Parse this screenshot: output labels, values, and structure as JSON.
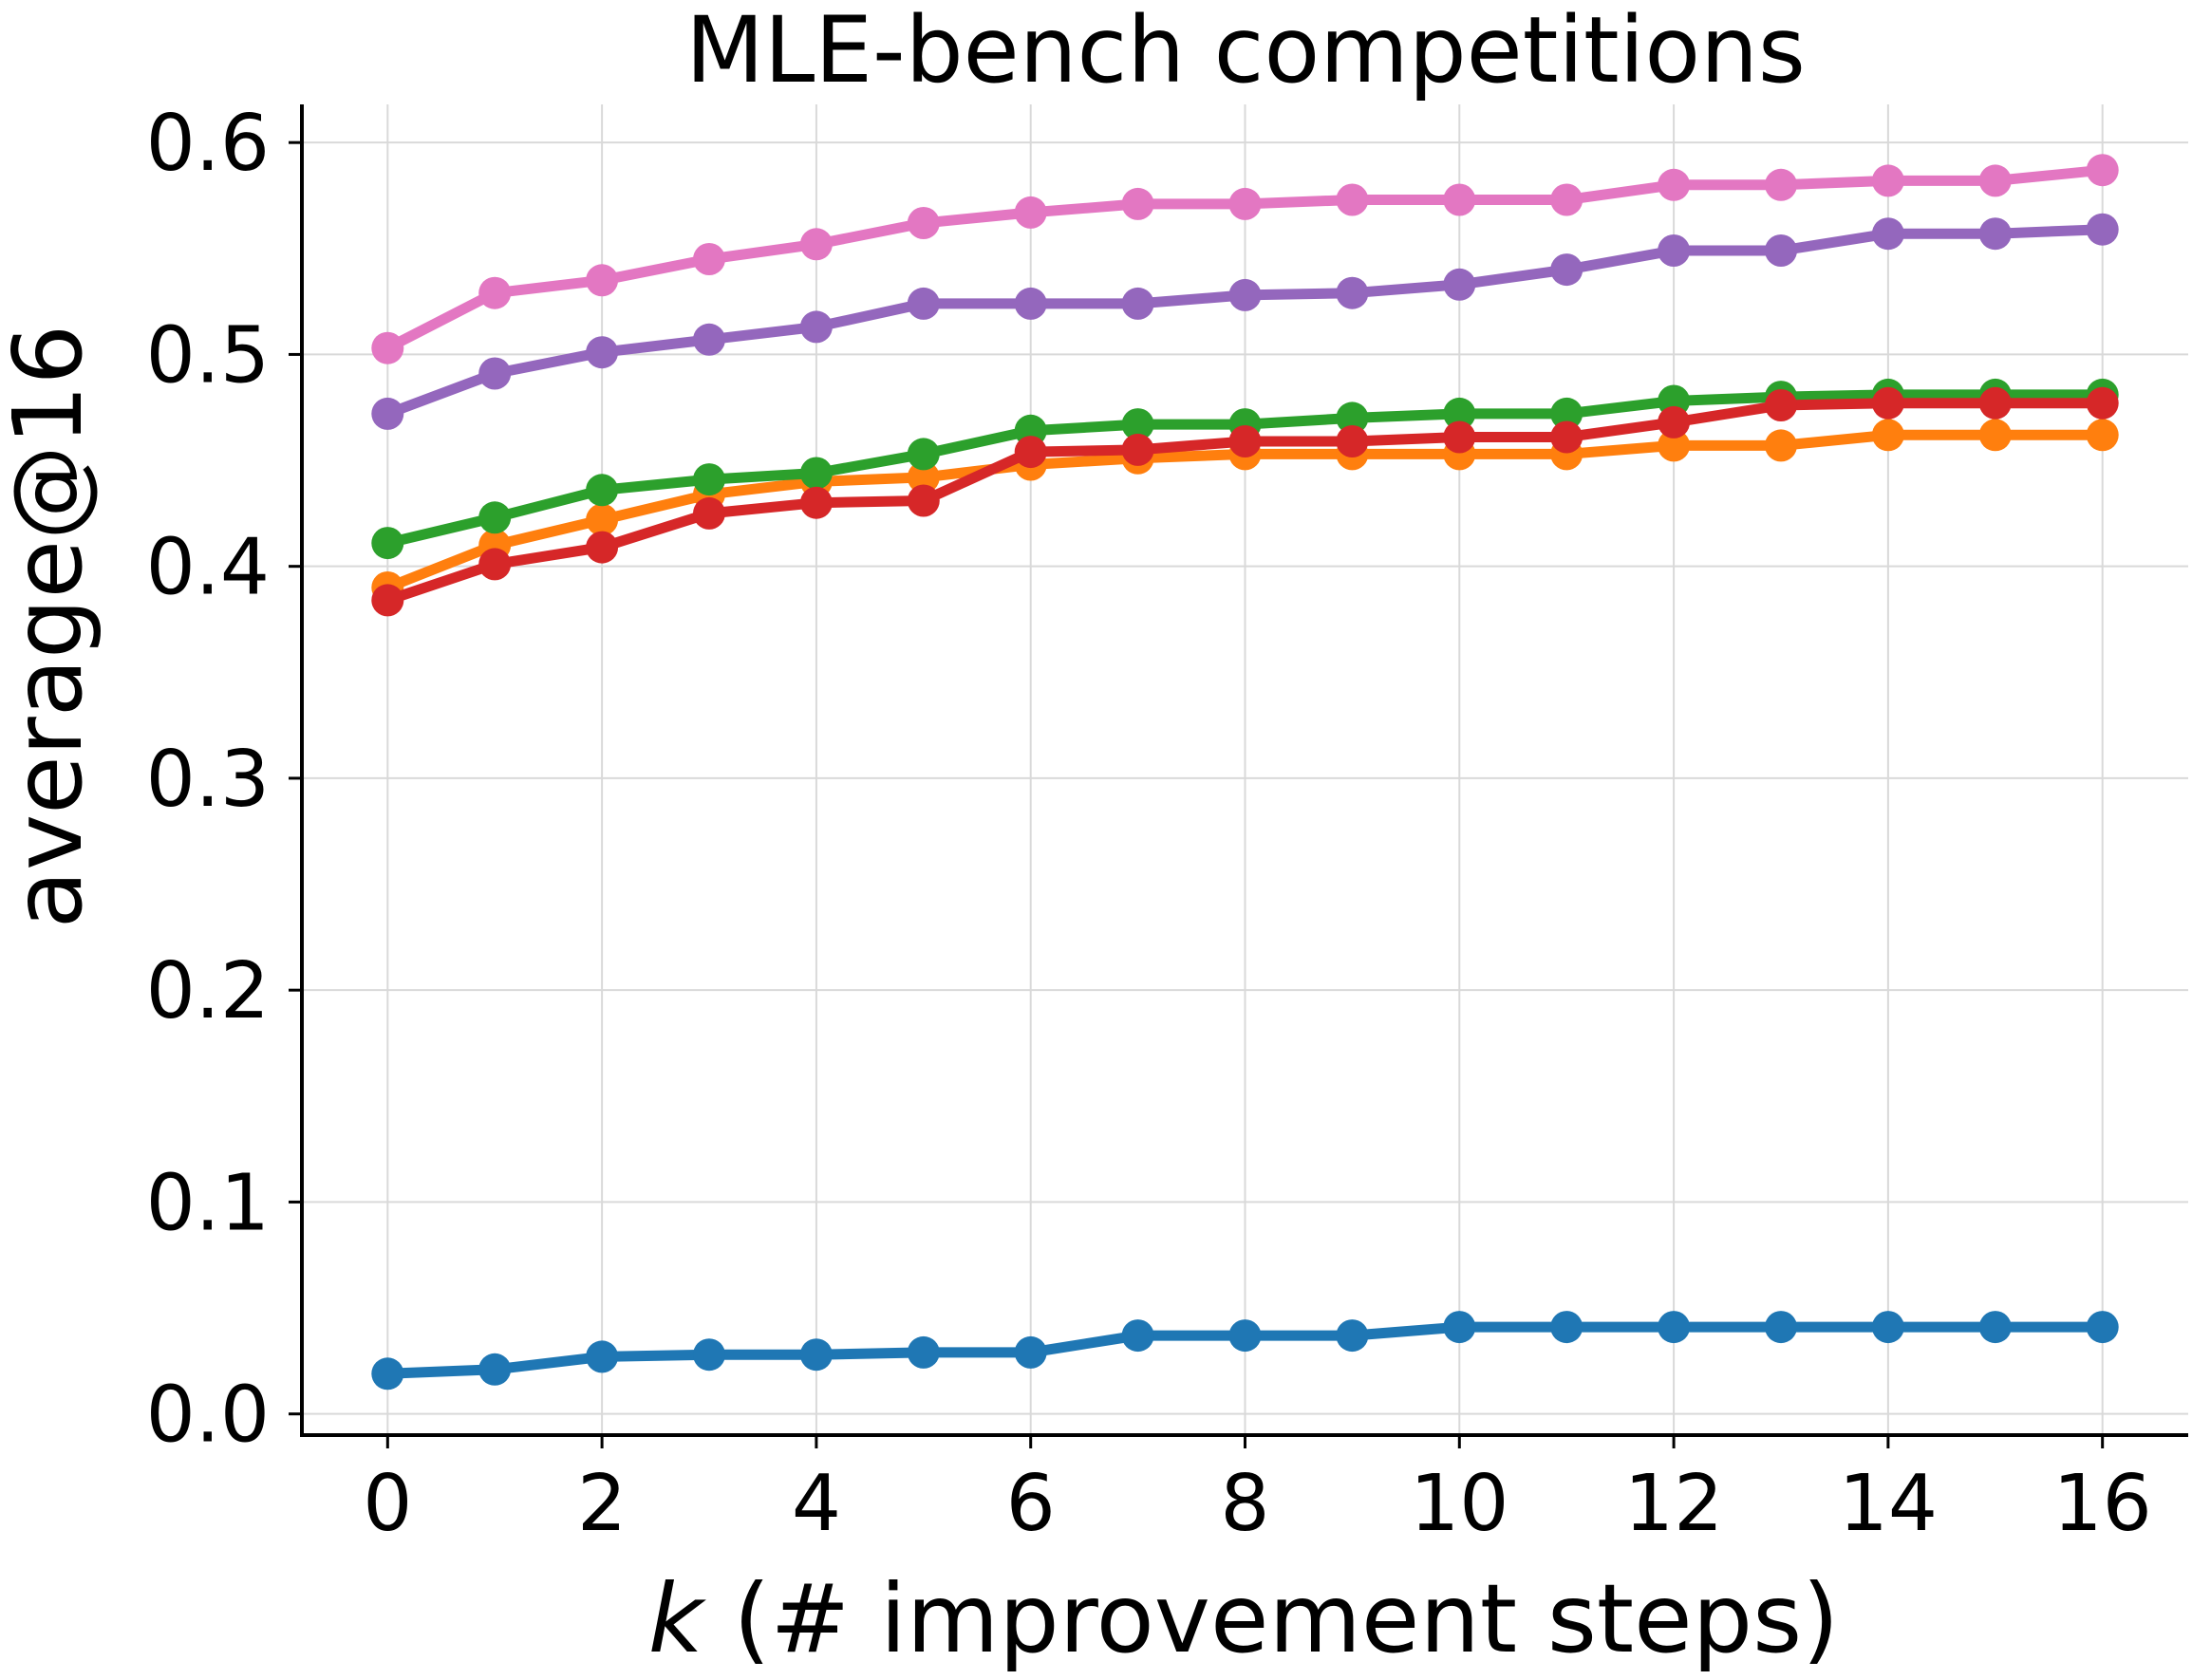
{
  "chart_data": {
    "type": "line",
    "title": "MLE-bench competitions",
    "xlabel_italic": "k",
    "xlabel_rest": " (# improvement steps)",
    "ylabel": "average@16",
    "x": [
      0,
      1,
      2,
      3,
      4,
      5,
      6,
      7,
      8,
      9,
      10,
      11,
      12,
      13,
      14,
      15,
      16
    ],
    "xticks": [
      0,
      2,
      4,
      6,
      8,
      10,
      12,
      14,
      16
    ],
    "xtick_labels": [
      "0",
      "2",
      "4",
      "6",
      "8",
      "10",
      "12",
      "14",
      "16"
    ],
    "xlim": [
      -0.8,
      16.8
    ],
    "yticks": [
      0.0,
      0.1,
      0.2,
      0.3,
      0.4,
      0.5,
      0.6
    ],
    "ytick_labels": [
      "0.0",
      "0.1",
      "0.2",
      "0.3",
      "0.4",
      "0.5",
      "0.6"
    ],
    "ylim": [
      -0.01,
      0.618
    ],
    "grid": true,
    "series": [
      {
        "name": "blue",
        "color": "#1f77b4",
        "values": [
          0.019,
          0.021,
          0.027,
          0.028,
          0.028,
          0.029,
          0.029,
          0.037,
          0.037,
          0.037,
          0.041,
          0.041,
          0.041,
          0.041,
          0.041,
          0.041,
          0.041
        ]
      },
      {
        "name": "orange",
        "color": "#ff7f0e",
        "values": [
          0.39,
          0.41,
          0.422,
          0.434,
          0.44,
          0.442,
          0.448,
          0.451,
          0.453,
          0.453,
          0.453,
          0.453,
          0.457,
          0.457,
          0.462,
          0.462,
          0.462
        ]
      },
      {
        "name": "green",
        "color": "#2ca02c",
        "values": [
          0.411,
          0.423,
          0.436,
          0.441,
          0.444,
          0.453,
          0.464,
          0.467,
          0.467,
          0.47,
          0.472,
          0.472,
          0.478,
          0.48,
          0.481,
          0.481,
          0.481
        ]
      },
      {
        "name": "red",
        "color": "#d62728",
        "values": [
          0.384,
          0.401,
          0.409,
          0.425,
          0.43,
          0.431,
          0.454,
          0.455,
          0.459,
          0.459,
          0.461,
          0.461,
          0.468,
          0.476,
          0.477,
          0.477,
          0.477
        ]
      },
      {
        "name": "purple",
        "color": "#9467bd",
        "values": [
          0.472,
          0.491,
          0.501,
          0.507,
          0.513,
          0.524,
          0.524,
          0.524,
          0.528,
          0.529,
          0.533,
          0.54,
          0.549,
          0.549,
          0.557,
          0.557,
          0.559
        ]
      },
      {
        "name": "pink",
        "color": "#e377c2",
        "values": [
          0.503,
          0.529,
          0.535,
          0.545,
          0.552,
          0.562,
          0.567,
          0.571,
          0.571,
          0.573,
          0.573,
          0.573,
          0.58,
          0.58,
          0.582,
          0.582,
          0.587
        ]
      }
    ]
  }
}
